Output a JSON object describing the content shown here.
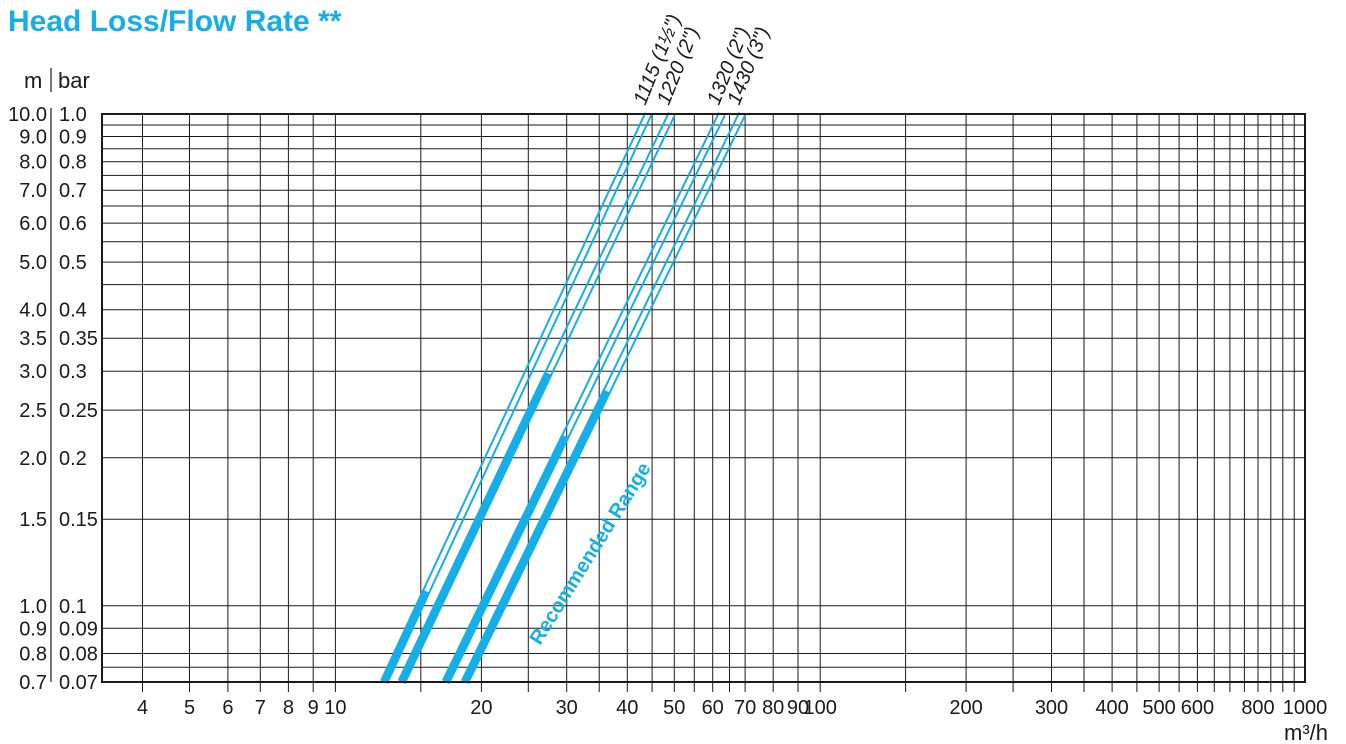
{
  "chart_data": {
    "type": "line",
    "title": "Head Loss/Flow Rate **",
    "xlabel": "m³/h",
    "ylabel_left": "m",
    "ylabel_right": "bar",
    "x_scale": "log",
    "y_scale": "log",
    "xlim": [
      3.3,
      1000
    ],
    "ylim_m": [
      0.7,
      10.0
    ],
    "x_tick_labels": [
      {
        "v": 4,
        "t": "4"
      },
      {
        "v": 5,
        "t": "5"
      },
      {
        "v": 6,
        "t": "6"
      },
      {
        "v": 7,
        "t": "7"
      },
      {
        "v": 8,
        "t": "8"
      },
      {
        "v": 9,
        "t": "9"
      },
      {
        "v": 10,
        "t": "10"
      },
      {
        "v": 20,
        "t": "20"
      },
      {
        "v": 30,
        "t": "30"
      },
      {
        "v": 40,
        "t": "40"
      },
      {
        "v": 50,
        "t": "50"
      },
      {
        "v": 60,
        "t": "60"
      },
      {
        "v": 70,
        "t": "70"
      },
      {
        "v": 80,
        "t": "80"
      },
      {
        "v": 90,
        "t": "90"
      },
      {
        "v": 100,
        "t": "100"
      },
      {
        "v": 200,
        "t": "200"
      },
      {
        "v": 300,
        "t": "300"
      },
      {
        "v": 400,
        "t": "400"
      },
      {
        "v": 500,
        "t": "500"
      },
      {
        "v": 600,
        "t": "600"
      },
      {
        "v": 800,
        "t": "800"
      },
      {
        "v": 1000,
        "t": "1000"
      }
    ],
    "x_gridlines": [
      4,
      5,
      6,
      7,
      8,
      9,
      10,
      15,
      20,
      25,
      30,
      35,
      40,
      45,
      50,
      55,
      60,
      65,
      70,
      80,
      90,
      100,
      150,
      200,
      250,
      300,
      350,
      400,
      450,
      500,
      550,
      600,
      650,
      700,
      750,
      800,
      850,
      900,
      950
    ],
    "y_tick_labels": [
      {
        "v": 10.0,
        "m": "10.0",
        "bar": "1.0"
      },
      {
        "v": 9.0,
        "m": "9.0",
        "bar": "0.9"
      },
      {
        "v": 8.0,
        "m": "8.0",
        "bar": "0.8"
      },
      {
        "v": 7.0,
        "m": "7.0",
        "bar": "0.7"
      },
      {
        "v": 6.0,
        "m": "6.0",
        "bar": "0.6"
      },
      {
        "v": 5.0,
        "m": "5.0",
        "bar": "0.5"
      },
      {
        "v": 4.0,
        "m": "4.0",
        "bar": "0.4"
      },
      {
        "v": 3.5,
        "m": "3.5",
        "bar": "0.35"
      },
      {
        "v": 3.0,
        "m": "3.0",
        "bar": "0.3"
      },
      {
        "v": 2.5,
        "m": "2.5",
        "bar": "0.25"
      },
      {
        "v": 2.0,
        "m": "2.0",
        "bar": "0.2"
      },
      {
        "v": 1.5,
        "m": "1.5",
        "bar": "0.15"
      },
      {
        "v": 1.0,
        "m": "1.0",
        "bar": "0.1"
      },
      {
        "v": 0.9,
        "m": "0.9",
        "bar": "0.09"
      },
      {
        "v": 0.8,
        "m": "0.8",
        "bar": "0.08"
      },
      {
        "v": 0.7,
        "m": "0.7",
        "bar": "0.07"
      }
    ],
    "y_gridlines": [
      10.0,
      9.5,
      9.0,
      8.5,
      8.0,
      7.5,
      7.0,
      6.5,
      6.0,
      5.5,
      5.0,
      4.5,
      4.0,
      3.5,
      3.0,
      2.5,
      2.0,
      1.5,
      1.0,
      0.9,
      0.8,
      0.75,
      0.7
    ],
    "series": [
      {
        "name": "1115 (1½\")",
        "x": [
          12.6,
          44.2
        ],
        "y": [
          0.7,
          10.0
        ],
        "recommended_x": [
          12.6,
          15.4
        ]
      },
      {
        "name": "1220 (2\")",
        "x": [
          13.7,
          49.4
        ],
        "y": [
          0.7,
          10.0
        ],
        "recommended_x": [
          13.7,
          27.5
        ]
      },
      {
        "name": "1320 (2\")",
        "x": [
          16.9,
          62.7
        ],
        "y": [
          0.7,
          10.0
        ],
        "recommended_x": [
          16.9,
          29.8
        ]
      },
      {
        "name": "1430 (3\")",
        "x": [
          18.5,
          69.0
        ],
        "y": [
          0.7,
          10.0
        ],
        "recommended_x": [
          18.5,
          36.3
        ]
      }
    ],
    "annotation": "Recommended Range",
    "line_color": "#16aee6",
    "grid": true
  }
}
